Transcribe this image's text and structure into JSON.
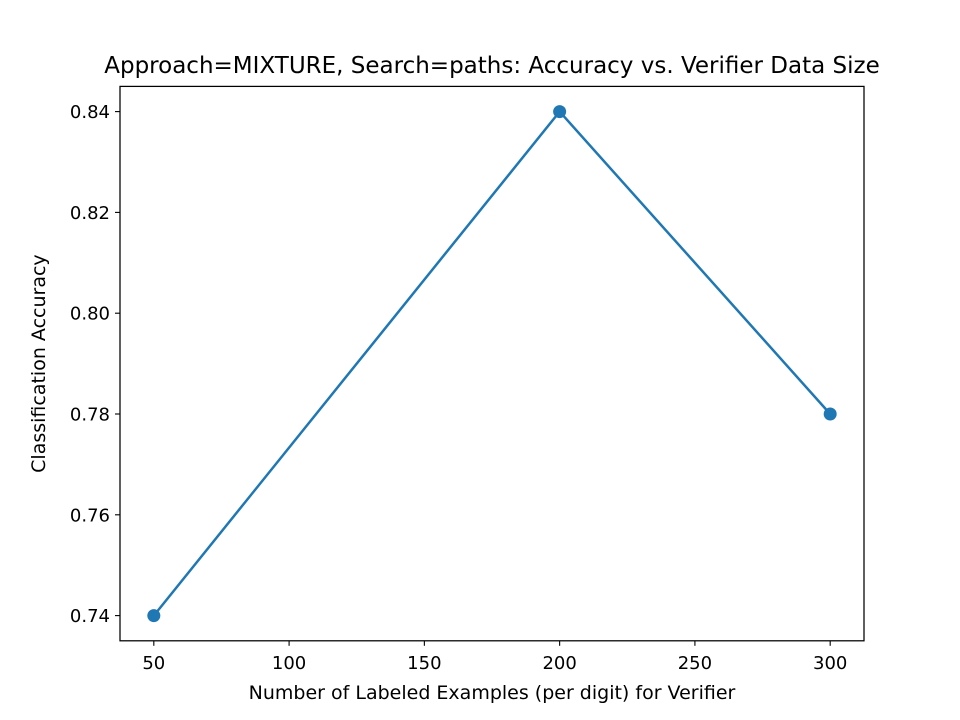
{
  "chart_data": {
    "type": "line",
    "title": "Approach=MIXTURE, Search=paths: Accuracy vs. Verifier Data Size",
    "xlabel": "Number of Labeled Examples (per digit) for Verifier",
    "ylabel": "Classification Accuracy",
    "x": [
      50,
      200,
      300
    ],
    "series": [
      {
        "values": [
          0.74,
          0.84,
          0.78
        ],
        "color": "#1f77b4",
        "marker": "circle"
      }
    ],
    "xlim": [
      37.5,
      312.5
    ],
    "ylim": [
      0.735,
      0.845
    ],
    "xticks": [
      50,
      100,
      150,
      200,
      250,
      300
    ],
    "yticks": [
      0.74,
      0.76,
      0.78,
      0.8,
      0.82,
      0.84
    ],
    "xtick_labels": [
      "50",
      "100",
      "150",
      "200",
      "250",
      "300"
    ],
    "ytick_labels": [
      "0.74",
      "0.76",
      "0.78",
      "0.80",
      "0.82",
      "0.84"
    ],
    "grid": false,
    "legend": false
  }
}
